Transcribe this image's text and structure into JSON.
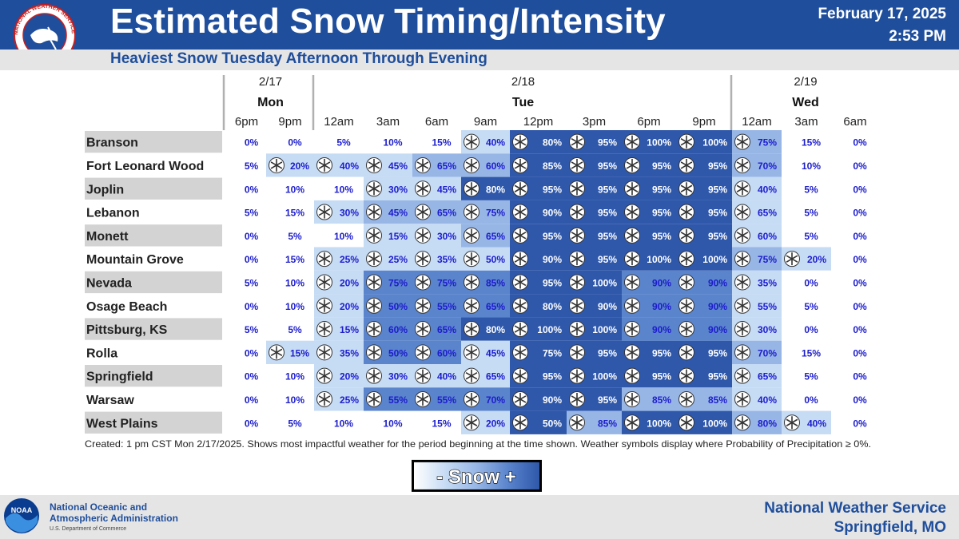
{
  "header": {
    "title": "Estimated Snow Timing/Intensity",
    "subtitle": "Heaviest Snow Tuesday Afternoon Through Evening",
    "date": "February 17, 2025",
    "time": "2:53 PM",
    "logo_text": "NATIONAL WEATHER SERVICE"
  },
  "colors": {
    "header_bg": "#1f4e9c",
    "title": "#ffffff",
    "subtitle": "#1f4e9c",
    "value_text": "#1d1dcc",
    "row_label_bg": "#d3d3d3",
    "scale": [
      "#ffffff",
      "#c6dbf4",
      "#97b6e6",
      "#5a84cc",
      "#2f58ab"
    ]
  },
  "chart_data": {
    "type": "table",
    "title": "Estimated Snow Timing/Intensity",
    "days": [
      {
        "date": "2/17",
        "day": "Mon",
        "columns": [
          0,
          1
        ]
      },
      {
        "date": "2/18",
        "day": "Tue",
        "columns": [
          2,
          9
        ]
      },
      {
        "date": "2/19",
        "day": "Wed",
        "columns": [
          10,
          12
        ]
      }
    ],
    "times": [
      "6pm",
      "9pm",
      "12am",
      "3am",
      "6am",
      "9am",
      "12pm",
      "3pm",
      "6pm",
      "9pm",
      "12am",
      "3am",
      "6am"
    ],
    "locations": [
      "Branson",
      "Fort Leonard Wood",
      "Joplin",
      "Lebanon",
      "Monett",
      "Mountain Grove",
      "Nevada",
      "Osage Beach",
      "Pittsburg, KS",
      "Rolla",
      "Springfield",
      "Warsaw",
      "West Plains"
    ],
    "values": [
      [
        0,
        0,
        5,
        10,
        15,
        40,
        80,
        95,
        100,
        100,
        75,
        15,
        0
      ],
      [
        5,
        20,
        40,
        45,
        65,
        60,
        85,
        95,
        95,
        95,
        70,
        10,
        0
      ],
      [
        0,
        10,
        10,
        30,
        45,
        80,
        95,
        95,
        95,
        95,
        40,
        5,
        0
      ],
      [
        5,
        15,
        30,
        45,
        65,
        75,
        90,
        95,
        95,
        95,
        65,
        5,
        0
      ],
      [
        0,
        5,
        10,
        15,
        30,
        65,
        95,
        95,
        95,
        95,
        60,
        5,
        0
      ],
      [
        0,
        15,
        25,
        25,
        35,
        50,
        90,
        95,
        100,
        100,
        75,
        20,
        0
      ],
      [
        5,
        10,
        20,
        75,
        75,
        85,
        95,
        100,
        90,
        90,
        35,
        0,
        0
      ],
      [
        0,
        10,
        20,
        50,
        55,
        65,
        80,
        90,
        90,
        90,
        55,
        5,
        0
      ],
      [
        5,
        5,
        15,
        60,
        65,
        80,
        100,
        100,
        90,
        90,
        30,
        0,
        0
      ],
      [
        0,
        15,
        35,
        50,
        60,
        45,
        75,
        95,
        95,
        95,
        70,
        15,
        0
      ],
      [
        0,
        10,
        20,
        30,
        40,
        65,
        95,
        100,
        95,
        95,
        65,
        5,
        0
      ],
      [
        0,
        10,
        25,
        55,
        55,
        70,
        90,
        95,
        85,
        85,
        40,
        0,
        0
      ],
      [
        0,
        5,
        10,
        10,
        15,
        20,
        50,
        85,
        100,
        100,
        80,
        40,
        0
      ]
    ],
    "intensity": [
      [
        0,
        0,
        0,
        0,
        0,
        1,
        4,
        4,
        4,
        4,
        2,
        0,
        0
      ],
      [
        0,
        1,
        1,
        1,
        2,
        2,
        4,
        4,
        4,
        4,
        2,
        0,
        0
      ],
      [
        0,
        0,
        0,
        1,
        1,
        4,
        4,
        4,
        4,
        4,
        1,
        0,
        0
      ],
      [
        0,
        0,
        1,
        2,
        2,
        2,
        4,
        4,
        4,
        4,
        1,
        0,
        0
      ],
      [
        0,
        0,
        0,
        1,
        1,
        2,
        4,
        4,
        4,
        4,
        1,
        0,
        0
      ],
      [
        0,
        0,
        1,
        1,
        1,
        1,
        4,
        4,
        4,
        4,
        2,
        1,
        0
      ],
      [
        0,
        0,
        1,
        3,
        3,
        3,
        4,
        4,
        3,
        3,
        1,
        0,
        0
      ],
      [
        0,
        0,
        1,
        3,
        3,
        3,
        4,
        4,
        3,
        3,
        1,
        0,
        0
      ],
      [
        0,
        0,
        1,
        3,
        3,
        4,
        4,
        4,
        3,
        3,
        1,
        0,
        0
      ],
      [
        0,
        1,
        1,
        3,
        3,
        1,
        4,
        4,
        4,
        4,
        2,
        0,
        0
      ],
      [
        0,
        0,
        1,
        1,
        1,
        1,
        4,
        4,
        4,
        4,
        1,
        0,
        0
      ],
      [
        0,
        0,
        1,
        3,
        3,
        3,
        4,
        4,
        2,
        2,
        1,
        0,
        0
      ],
      [
        0,
        0,
        0,
        0,
        0,
        1,
        4,
        2,
        4,
        4,
        2,
        1,
        0
      ]
    ],
    "footnote": "Created: 1 pm CST Mon 2/17/2025. Shows most impactful weather for the period beginning at the time shown. Weather symbols display where Probability of Precipitation ≥ 0%.",
    "legend_label": "- Snow +"
  },
  "footer": {
    "agency_line1": "National Oceanic and",
    "agency_line2": "Atmospheric Administration",
    "department": "U.S. Department of Commerce",
    "office_line1": "National Weather Service",
    "office_line2": "Springfield, MO",
    "noaa_logo_text": "NOAA"
  }
}
